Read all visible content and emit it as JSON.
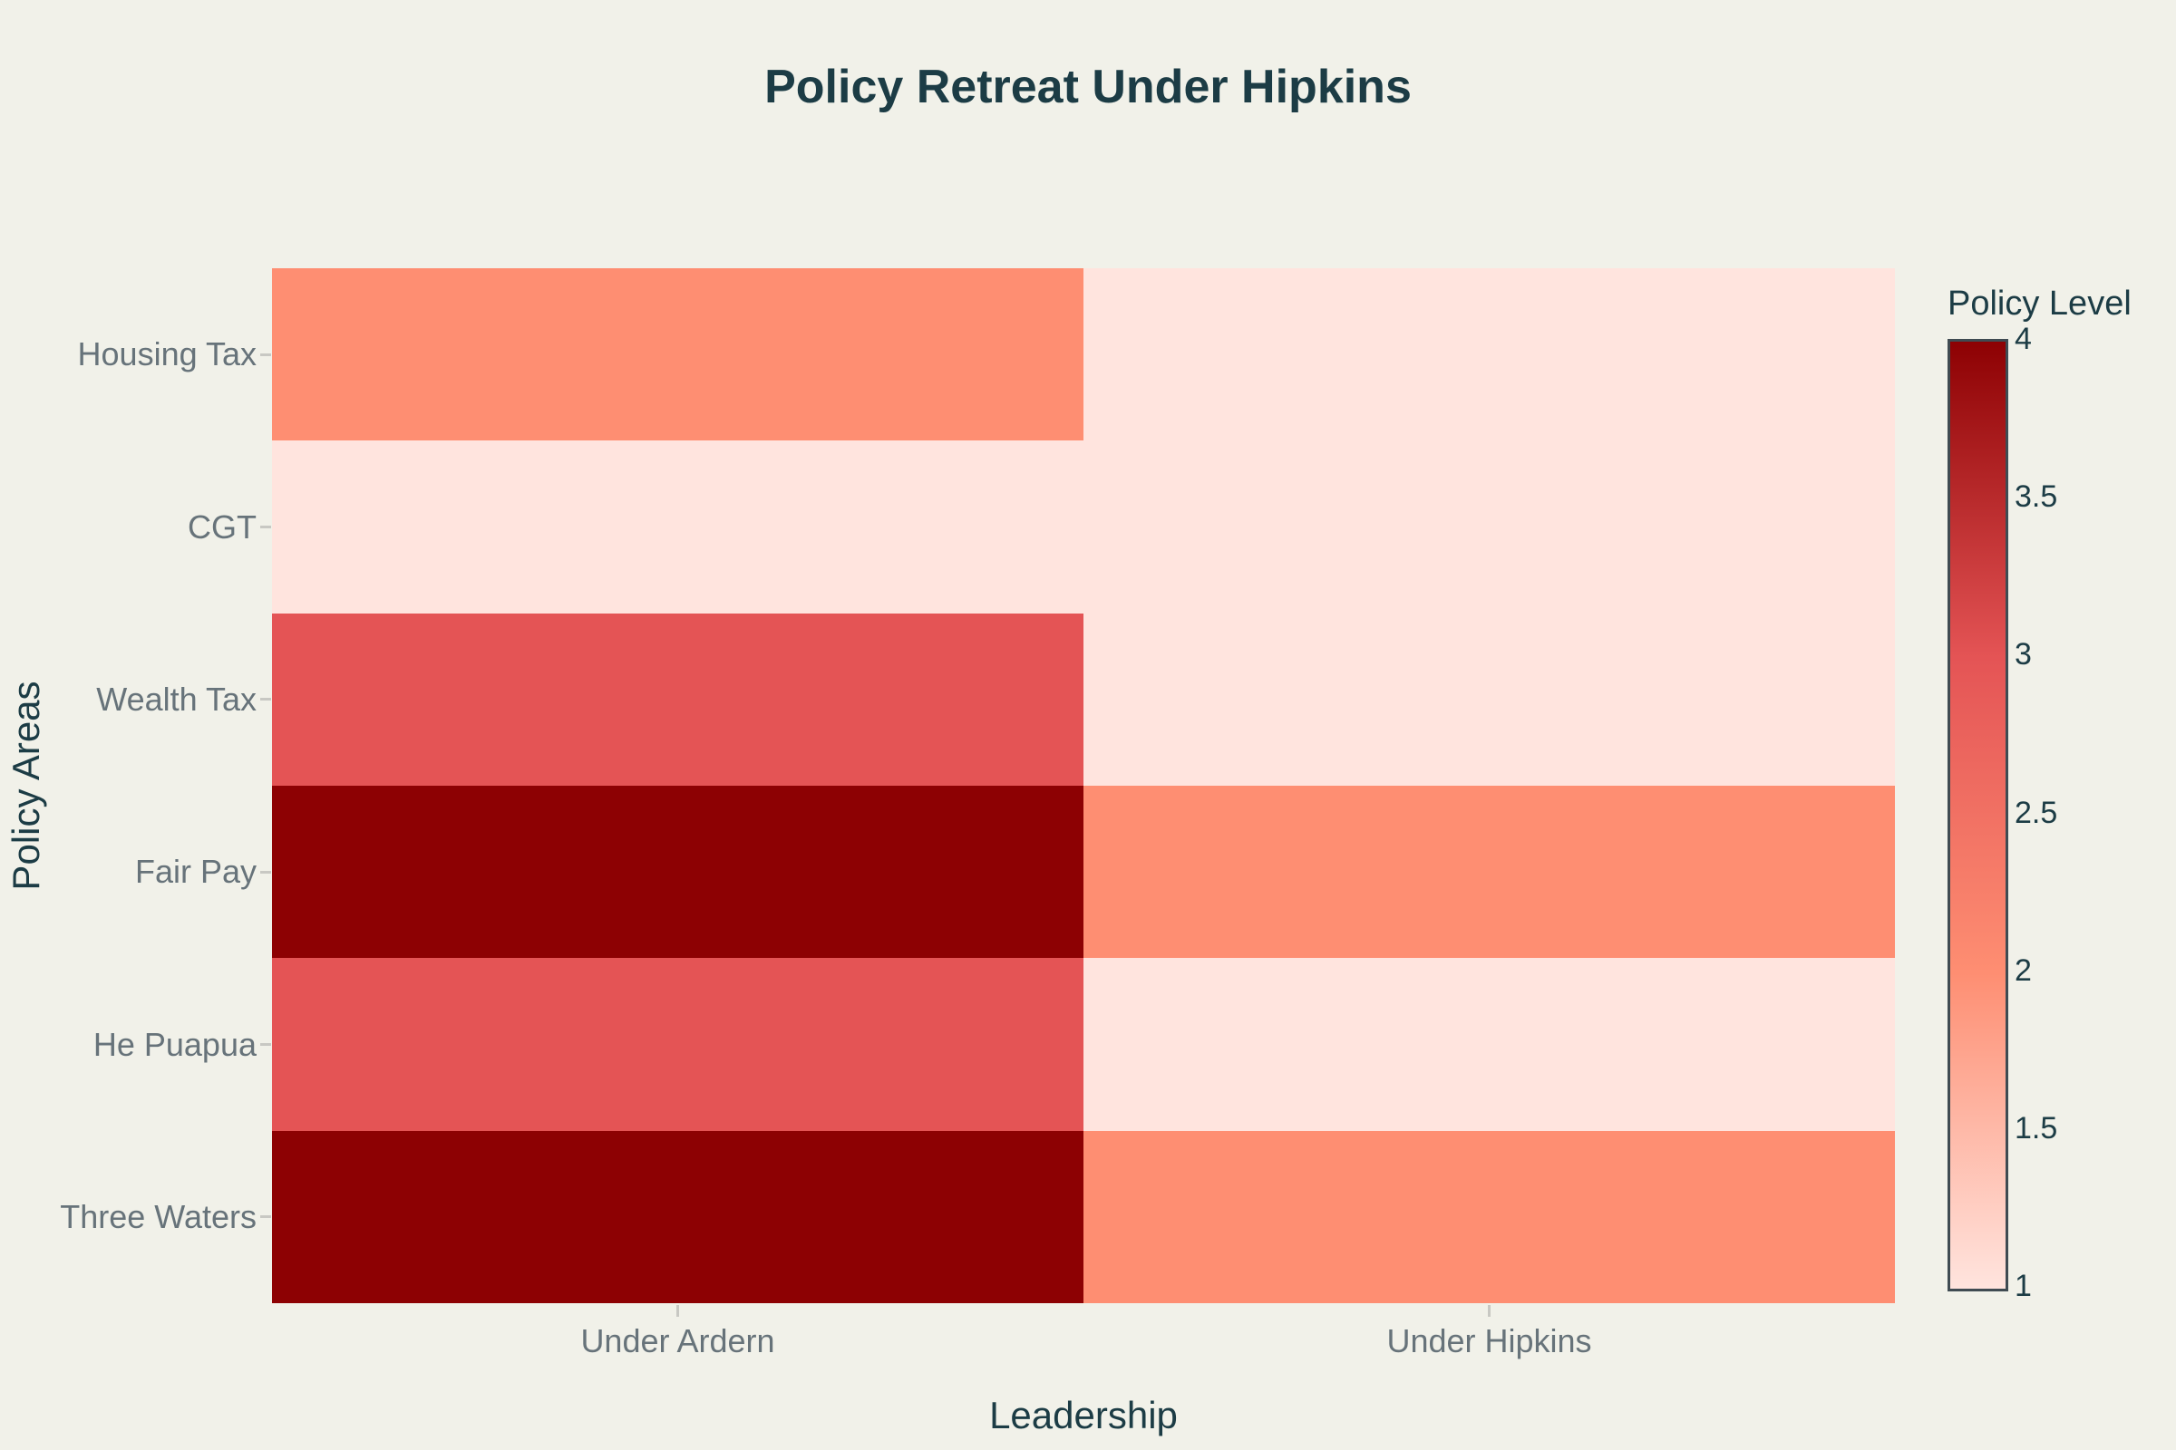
{
  "chart": {
    "title": "Policy Retreat Under Hipkins",
    "xaxis": {
      "title": "Leadership"
    },
    "yaxis": {
      "title": "Policy Areas"
    },
    "colorbar": {
      "title": "Policy Level"
    },
    "colors": {
      "background": "#F1F1E9",
      "title_text": "#1C3C45",
      "tick_text": "#67737A",
      "tick_mark": "#C8C8C3",
      "colorbar_border": "#3F4B52"
    }
  },
  "chart_data": {
    "type": "heatmap",
    "title": "Policy Retreat Under Hipkins",
    "xlabel": "Leadership",
    "ylabel": "Policy Areas",
    "x": [
      "Under Ardern",
      "Under Hipkins"
    ],
    "y": [
      "Housing Tax",
      "CGT",
      "Wealth Tax",
      "Fair Pay",
      "He Puapua",
      "Three Waters"
    ],
    "z": [
      [
        2,
        1
      ],
      [
        1,
        1
      ],
      [
        3,
        1
      ],
      [
        4,
        2
      ],
      [
        3,
        1
      ],
      [
        4,
        2
      ]
    ],
    "zmin": 1,
    "zmax": 4,
    "colorbar_title": "Policy Level",
    "colorbar_ticks": [
      4,
      3.5,
      3,
      2.5,
      2,
      1.5,
      1
    ],
    "colorscale": [
      {
        "value": 1,
        "color": "#FFE4DE"
      },
      {
        "value": 2,
        "color": "#FE8E72"
      },
      {
        "value": 3,
        "color": "#E45455"
      },
      {
        "value": 4,
        "color": "#8D0103"
      }
    ],
    "legend_position": "right",
    "grid": false
  }
}
